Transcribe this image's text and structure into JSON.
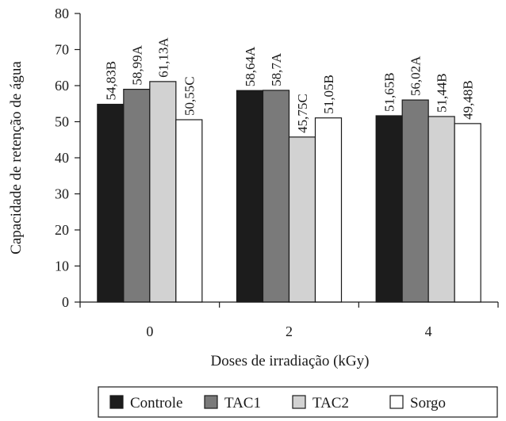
{
  "chart_data": {
    "type": "bar",
    "title": "",
    "xlabel": "Doses de irradiação (kGy)",
    "ylabel": "Capacidade de retenção de água",
    "ylim": [
      0,
      80
    ],
    "yticks": [
      "0",
      "10",
      "20",
      "30",
      "40",
      "50",
      "60",
      "70",
      "80"
    ],
    "categories": [
      "0",
      "2",
      "4"
    ],
    "grid": false,
    "legend_position": "bottom",
    "series": [
      {
        "name": "Controle",
        "color": "#1c1c1c",
        "values": [
          54.83,
          58.64,
          51.65
        ],
        "labels": [
          "54,83B",
          "58,64A",
          "51,65B"
        ]
      },
      {
        "name": "TAC1",
        "color": "#7a7a7a",
        "values": [
          58.99,
          58.7,
          56.02
        ],
        "labels": [
          "58,99A",
          "58,7A",
          "56,02A"
        ]
      },
      {
        "name": "TAC2",
        "color": "#d2d2d2",
        "values": [
          61.13,
          45.75,
          51.44
        ],
        "labels": [
          "61,13A",
          "45,75C",
          "51,44B"
        ]
      },
      {
        "name": "Sorgo",
        "color": "#ffffff",
        "values": [
          50.55,
          51.05,
          49.48
        ],
        "labels": [
          "50,55C",
          "51,05B",
          "49,48B"
        ]
      }
    ]
  }
}
